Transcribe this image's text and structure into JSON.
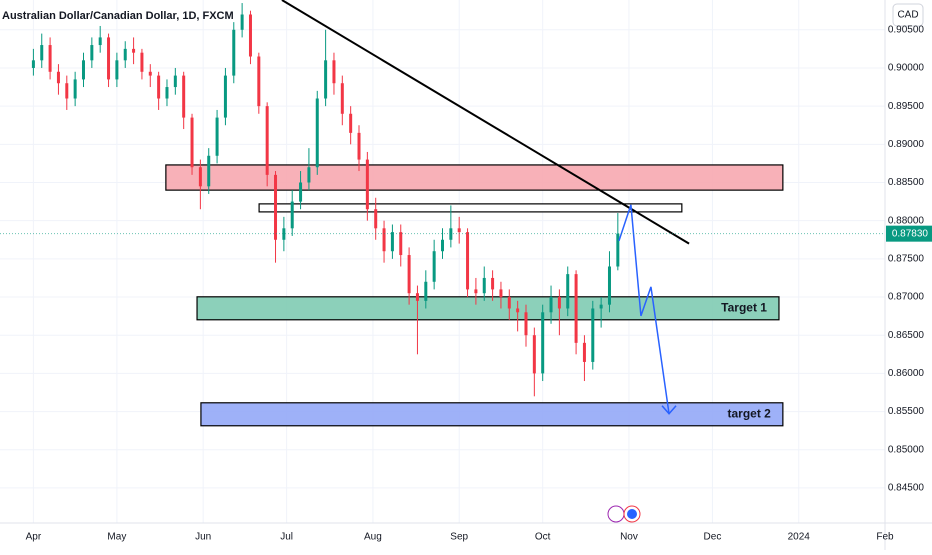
{
  "chart_data": {
    "type": "candlestick",
    "title": "Australian Dollar/Canadian Dollar, 1D, FXCM",
    "currency": "CAD",
    "xlim": [
      -12,
      306
    ],
    "xticks": [
      {
        "value": 0,
        "label": "Apr"
      },
      {
        "value": 30,
        "label": "May"
      },
      {
        "value": 61,
        "label": "Jun"
      },
      {
        "value": 91,
        "label": "Jul"
      },
      {
        "value": 122,
        "label": "Aug"
      },
      {
        "value": 153,
        "label": "Sep"
      },
      {
        "value": 183,
        "label": "Oct"
      },
      {
        "value": 214,
        "label": "Nov"
      },
      {
        "value": 244,
        "label": "Dec"
      },
      {
        "value": 275,
        "label": "2024"
      },
      {
        "value": 306,
        "label": "Feb"
      }
    ],
    "ylim": [
      0.8408,
      0.9089
    ],
    "yticks": [
      {
        "value": 0.845,
        "label": "0.84500"
      },
      {
        "value": 0.85,
        "label": "0.85000"
      },
      {
        "value": 0.855,
        "label": "0.85500"
      },
      {
        "value": 0.86,
        "label": "0.86000"
      },
      {
        "value": 0.865,
        "label": "0.86500"
      },
      {
        "value": 0.87,
        "label": "0.87000"
      },
      {
        "value": 0.875,
        "label": "0.87500"
      },
      {
        "value": 0.88,
        "label": "0.88000"
      },
      {
        "value": 0.885,
        "label": "0.88500"
      },
      {
        "value": 0.89,
        "label": "0.89000"
      },
      {
        "value": 0.895,
        "label": "0.89500"
      },
      {
        "value": 0.9,
        "label": "0.90000"
      },
      {
        "value": 0.905,
        "label": "0.90500"
      }
    ],
    "up_color": "#089981",
    "down_color": "#f23645",
    "candles": {
      "x": [
        0,
        3,
        6,
        9,
        12,
        15,
        18,
        21,
        24,
        27,
        30,
        33,
        36,
        39,
        42,
        45,
        48,
        51,
        54,
        57,
        60,
        63,
        66,
        69,
        72,
        75,
        78,
        81,
        84,
        87,
        90,
        93,
        96,
        99,
        102,
        105,
        108,
        111,
        114,
        117,
        120,
        123,
        126,
        129,
        132,
        135,
        138,
        141,
        144,
        147,
        150,
        153,
        156,
        159,
        162,
        165,
        168,
        171,
        174,
        177,
        180,
        183,
        186,
        189,
        192,
        195,
        198,
        201,
        204,
        207,
        210
      ],
      "open": [
        0.9,
        0.901,
        0.903,
        0.8995,
        0.898,
        0.896,
        0.8985,
        0.901,
        0.903,
        0.904,
        0.8985,
        0.901,
        0.9025,
        0.902,
        0.8995,
        0.899,
        0.896,
        0.8975,
        0.899,
        0.8935,
        0.887,
        0.8845,
        0.8885,
        0.8935,
        0.899,
        0.905,
        0.907,
        0.9015,
        0.895,
        0.886,
        0.8775,
        0.879,
        0.8825,
        0.885,
        0.887,
        0.896,
        0.901,
        0.898,
        0.894,
        0.8915,
        0.888,
        0.8815,
        0.879,
        0.876,
        0.8785,
        0.8755,
        0.8705,
        0.8695,
        0.872,
        0.876,
        0.8775,
        0.879,
        0.8785,
        0.871,
        0.8705,
        0.8725,
        0.871,
        0.87,
        0.8685,
        0.868,
        0.865,
        0.86,
        0.868,
        0.87,
        0.8685,
        0.873,
        0.864,
        0.8615,
        0.8685,
        0.869,
        0.874
      ],
      "high": [
        0.9025,
        0.9045,
        0.904,
        0.9005,
        0.899,
        0.8995,
        0.902,
        0.904,
        0.9055,
        0.9045,
        0.902,
        0.9035,
        0.904,
        0.9025,
        0.9005,
        0.8995,
        0.8985,
        0.9,
        0.8995,
        0.894,
        0.888,
        0.8895,
        0.8945,
        0.9,
        0.906,
        0.9085,
        0.9075,
        0.902,
        0.8955,
        0.8865,
        0.8805,
        0.884,
        0.8865,
        0.8895,
        0.897,
        0.905,
        0.902,
        0.899,
        0.895,
        0.8925,
        0.889,
        0.883,
        0.88,
        0.8795,
        0.8795,
        0.8765,
        0.8715,
        0.8735,
        0.8775,
        0.879,
        0.882,
        0.8805,
        0.879,
        0.8725,
        0.874,
        0.8735,
        0.872,
        0.871,
        0.8695,
        0.869,
        0.866,
        0.869,
        0.8715,
        0.871,
        0.874,
        0.8735,
        0.865,
        0.8695,
        0.87,
        0.876,
        0.881
      ],
      "low": [
        0.899,
        0.9,
        0.8985,
        0.8965,
        0.8945,
        0.895,
        0.8975,
        0.9,
        0.902,
        0.8975,
        0.8975,
        0.9,
        0.9005,
        0.8985,
        0.8975,
        0.8945,
        0.895,
        0.8965,
        0.892,
        0.886,
        0.8815,
        0.8835,
        0.8875,
        0.8925,
        0.898,
        0.904,
        0.9005,
        0.894,
        0.8845,
        0.8745,
        0.876,
        0.878,
        0.8815,
        0.884,
        0.886,
        0.895,
        0.8965,
        0.8925,
        0.89,
        0.8865,
        0.88,
        0.8775,
        0.8745,
        0.875,
        0.874,
        0.869,
        0.8625,
        0.8685,
        0.871,
        0.875,
        0.8765,
        0.877,
        0.87,
        0.869,
        0.8695,
        0.8695,
        0.8685,
        0.867,
        0.8655,
        0.8635,
        0.857,
        0.859,
        0.8665,
        0.865,
        0.8675,
        0.8625,
        0.859,
        0.8605,
        0.866,
        0.868,
        0.8735
      ],
      "close": [
        0.901,
        0.903,
        0.8995,
        0.898,
        0.896,
        0.8985,
        0.901,
        0.903,
        0.904,
        0.8985,
        0.901,
        0.9025,
        0.902,
        0.8995,
        0.899,
        0.896,
        0.8975,
        0.899,
        0.8935,
        0.887,
        0.8845,
        0.8885,
        0.8935,
        0.899,
        0.905,
        0.907,
        0.9015,
        0.895,
        0.886,
        0.8775,
        0.879,
        0.8825,
        0.885,
        0.887,
        0.896,
        0.901,
        0.898,
        0.894,
        0.8915,
        0.888,
        0.8815,
        0.879,
        0.876,
        0.8785,
        0.8755,
        0.8705,
        0.8695,
        0.872,
        0.876,
        0.8775,
        0.879,
        0.8785,
        0.871,
        0.8705,
        0.8725,
        0.871,
        0.87,
        0.8685,
        0.868,
        0.865,
        0.86,
        0.868,
        0.87,
        0.8685,
        0.873,
        0.864,
        0.8615,
        0.8685,
        0.869,
        0.874,
        0.8783
      ]
    },
    "current_price": {
      "value": 0.8783,
      "label": "0.87830"
    },
    "zones": [
      {
        "x": [
          47.6,
          269.3
        ],
        "y": [
          0.884,
          0.8873
        ],
        "color": "#f7a9b0"
      },
      {
        "x": [
          81.1,
          233.0
        ],
        "y": [
          0.88115,
          0.8822
        ],
        "color": "#ffffff"
      },
      {
        "x": [
          58.8,
          267.9
        ],
        "y": [
          0.86702,
          0.87003
        ],
        "color": "#7fcbb3",
        "label": "Target 1"
      },
      {
        "x": [
          60.2,
          269.3
        ],
        "y": [
          0.85314,
          0.85615
        ],
        "color": "#93a9f7",
        "label": "target 2"
      }
    ],
    "trend_line": {
      "x": [
        89.3,
        235.6
      ],
      "y": [
        0.9089,
        0.877
      ],
      "color": "#000000"
    },
    "projection": {
      "x": [
        210.4,
        214.7,
        218.3,
        221.9,
        228.4
      ],
      "y": [
        0.87736,
        0.88207,
        0.86754,
        0.87133,
        0.85471
      ],
      "color": "#2962ff"
    }
  }
}
